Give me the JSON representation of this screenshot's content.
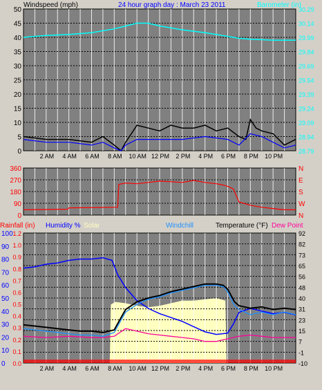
{
  "colors": {
    "frame_bg": "#d4d0c8",
    "plot_bg": "#808080",
    "grid": "#ffffff",
    "grid_dash": "#000000",
    "barometer": "#00ffff",
    "windspeed": "#000000",
    "avg_windspeed": "#0000ff",
    "gust_fill": "#5a5a5a",
    "direction": "#ff0000",
    "direction_axis": "#ff0000",
    "humidity": "#0000ff",
    "solar_fill": "#ffffc0",
    "windchill": "#1e90ff",
    "temperature": "#000000",
    "dewpoint": "#ff0099",
    "rainfall": "#ff0000",
    "rain_label": "#ff0000",
    "left_axis_blue": "#0000ff",
    "right_axis_temp": "#000000"
  },
  "chart_data": [
    {
      "type": "line",
      "title": "24 hour graph day : March 23 2011",
      "left_label": "Windspeed (mph)",
      "right_label": "Barometer (in)",
      "x_ticks": [
        "2 AM",
        "4 AM",
        "6 AM",
        "8 AM",
        "10 AM",
        "12 PM",
        "2 PM",
        "4 PM",
        "6 PM",
        "8 PM",
        "10 PM"
      ],
      "x_range_hours": [
        0,
        24
      ],
      "left_ylim": [
        0,
        50
      ],
      "left_ticks": [
        "0",
        "5",
        "10",
        "15",
        "20",
        "25",
        "30",
        "35",
        "40",
        "45",
        "50"
      ],
      "right_ylim": [
        28.79,
        30.29
      ],
      "right_ticks": [
        "28.79",
        "28.94",
        "29.09",
        "29.24",
        "29.39",
        "29.54",
        "29.69",
        "29.84",
        "29.99",
        "30.14",
        "30.29"
      ],
      "series": [
        {
          "key": "barometer",
          "axis": "right",
          "x": [
            0,
            2,
            4,
            6,
            8,
            9,
            10,
            11,
            12,
            14,
            16,
            18,
            19,
            20,
            22,
            24
          ],
          "y": [
            29.99,
            30.01,
            30.02,
            30.04,
            30.08,
            30.11,
            30.14,
            30.14,
            30.11,
            30.07,
            30.04,
            30.0,
            29.98,
            29.97,
            29.96,
            29.96
          ]
        },
        {
          "key": "windspeed",
          "axis": "left",
          "x": [
            0,
            2,
            4,
            6,
            7,
            8,
            8.6,
            9,
            9.5,
            10,
            11,
            12,
            13,
            14,
            15,
            16,
            17,
            18,
            19,
            19.6,
            20,
            20.5,
            21,
            22,
            23,
            24
          ],
          "y": [
            5,
            4,
            4,
            3,
            5,
            2,
            0,
            3,
            6,
            9,
            8,
            7,
            9,
            8,
            8,
            9,
            7,
            8,
            5,
            4,
            11,
            8,
            7,
            6,
            2,
            4
          ]
        },
        {
          "key": "avg_windspeed",
          "axis": "left",
          "x": [
            0,
            2,
            4,
            6,
            7,
            8,
            8.6,
            9,
            10,
            12,
            14,
            16,
            18,
            19,
            20,
            21,
            22,
            23,
            24
          ],
          "y": [
            4,
            3,
            3,
            2,
            3,
            1,
            0,
            2,
            4,
            4,
            4,
            5,
            4,
            2,
            6,
            5,
            3,
            1,
            2
          ]
        }
      ]
    },
    {
      "type": "scatter",
      "left_ticks": [
        "0",
        "90",
        "180",
        "270",
        "360"
      ],
      "left_ylim": [
        0,
        360
      ],
      "right_ticks": [
        "N",
        "W",
        "S",
        "E",
        "N"
      ],
      "series": [
        {
          "key": "direction",
          "x": [
            0,
            3.9,
            4.0,
            8.3,
            8.4,
            9,
            10,
            11,
            12,
            13,
            14,
            15,
            16,
            17,
            17.6,
            18,
            18.5,
            19,
            20,
            21,
            22,
            23,
            24
          ],
          "y": [
            40,
            45,
            55,
            60,
            235,
            245,
            240,
            250,
            260,
            255,
            250,
            265,
            250,
            240,
            230,
            220,
            200,
            100,
            75,
            60,
            50,
            40,
            40
          ]
        }
      ]
    },
    {
      "type": "line",
      "legend": [
        "Rainfall (in)",
        "Humidity %",
        "Solar",
        "Windchill",
        "Temperature (°F)",
        "Dew Point"
      ],
      "left_ticks_rain": [
        "0.0",
        "0.1",
        "0.2",
        "0.3",
        "0.4",
        "0.5",
        "0.6",
        "0.7",
        "0.8",
        "0.9",
        "1.0",
        "1.2"
      ],
      "left_ticks_humidity": [
        "0",
        "10",
        "20",
        "30",
        "40",
        "50",
        "60",
        "70",
        "80",
        "90",
        "100"
      ],
      "right_ticks_temp": [
        "-10",
        "-1",
        "7",
        "15",
        "23",
        "31",
        "40",
        "48",
        "56",
        "65",
        "73",
        "82",
        "92"
      ],
      "humidity_ylim": [
        0,
        100
      ],
      "temp_ylim": [
        -10,
        92
      ],
      "series": [
        {
          "key": "humidity",
          "axis": "humidity",
          "x": [
            0,
            1,
            2,
            3,
            4,
            5,
            6,
            7,
            7.8,
            8.3,
            9,
            10,
            11,
            12,
            13,
            14,
            15,
            16,
            17,
            18,
            18.5,
            19,
            20,
            21,
            22,
            23,
            24
          ],
          "y": [
            73,
            74,
            76,
            77,
            79,
            80,
            80,
            81,
            79,
            68,
            58,
            48,
            42,
            38,
            35,
            32,
            28,
            24,
            22,
            23,
            30,
            39,
            42,
            40,
            38,
            39,
            37
          ]
        },
        {
          "key": "temperature",
          "axis": "temp",
          "x": [
            0,
            1,
            2,
            3,
            4,
            5,
            6,
            7,
            8,
            8.5,
            9,
            10,
            11,
            12,
            13,
            14,
            15,
            16,
            17,
            17.6,
            18,
            18.6,
            19,
            20,
            21,
            22,
            23,
            24
          ],
          "y": [
            20,
            19,
            18,
            17,
            16,
            15,
            15,
            14,
            16,
            24,
            32,
            38,
            41,
            43,
            46,
            48,
            50,
            52,
            52,
            51,
            48,
            38,
            35,
            33,
            34,
            32,
            33,
            32
          ]
        },
        {
          "key": "windchill",
          "axis": "temp",
          "x": [
            0,
            1,
            2,
            3,
            4,
            5,
            6,
            7,
            8,
            8.5,
            9,
            10,
            11,
            12,
            13,
            14,
            15,
            16,
            17,
            17.6,
            18,
            18.6,
            19,
            20,
            21,
            22,
            23,
            24
          ],
          "y": [
            17,
            16,
            15,
            14,
            13,
            12,
            12,
            11,
            14,
            22,
            30,
            36,
            40,
            42,
            45,
            47,
            49,
            51,
            51,
            50,
            46,
            35,
            32,
            28,
            30,
            28,
            30,
            28
          ]
        },
        {
          "key": "dewpoint",
          "axis": "temp",
          "x": [
            0,
            2,
            4,
            6,
            7,
            8,
            9,
            10,
            11,
            12,
            13,
            14,
            15,
            16,
            17,
            18,
            19,
            20,
            21,
            22,
            23,
            24
          ],
          "y": [
            11,
            10,
            11,
            10,
            10,
            11,
            17,
            15,
            13,
            12,
            11,
            10,
            9,
            7,
            7,
            9,
            11,
            12,
            11,
            10,
            10,
            10
          ]
        },
        {
          "key": "solar",
          "axis": "humidity",
          "x": [
            0,
            7.6,
            7.7,
            8.1,
            9,
            10,
            11,
            12,
            13,
            14,
            15,
            16,
            17,
            17.8,
            17.9,
            24
          ],
          "y": [
            0,
            0,
            45,
            47,
            46,
            44,
            43,
            44,
            46,
            48,
            48,
            49,
            50,
            48,
            0,
            0
          ]
        }
      ]
    }
  ]
}
